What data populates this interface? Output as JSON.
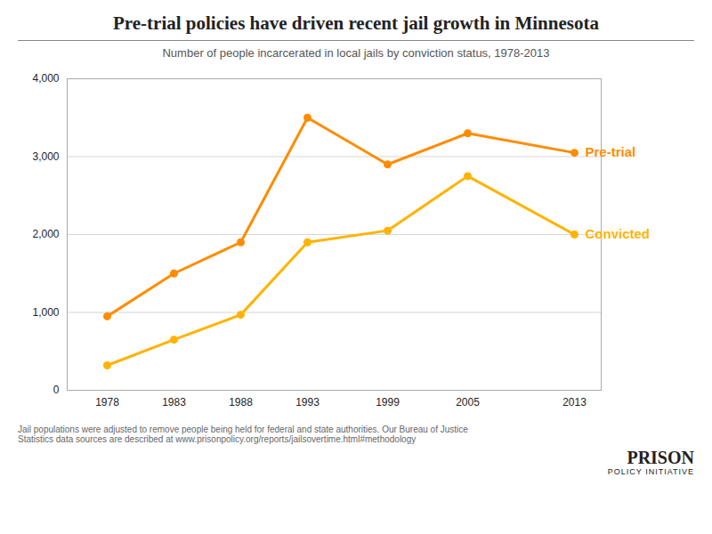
{
  "chart_data": {
    "type": "line",
    "title": "Pre-trial policies have driven recent jail growth in Minnesota",
    "subtitle": "Number of people incarcerated in local jails by conviction status, 1978-2013",
    "x": [
      1978,
      1983,
      1988,
      1993,
      1999,
      2005,
      2013
    ],
    "series": [
      {
        "name": "Pre-trial",
        "color": "#FF8C00",
        "values": [
          950,
          1500,
          1900,
          3500,
          2900,
          3300,
          3050
        ]
      },
      {
        "name": "Convicted",
        "color": "#FFB300",
        "values": [
          320,
          650,
          970,
          1900,
          2050,
          2750,
          2000
        ]
      }
    ],
    "xlim": [
      1975,
      2015
    ],
    "xticks": [
      1978,
      1983,
      1988,
      1993,
      1999,
      2005,
      2013
    ],
    "ylim": [
      0,
      4000
    ],
    "yticks": [
      0,
      {
        "value": 1000,
        "label": "1,000"
      },
      {
        "value": 2000,
        "label": "2,000"
      },
      {
        "value": 3000,
        "label": "3,000"
      },
      {
        "value": 4000,
        "label": "4,000"
      }
    ],
    "grid": true,
    "marker": "circle",
    "annotations": [
      "Jail populations were adjusted to remove people being held for federal and state authorities. Our Bureau of Justice\nStatistics data sources are described at www.prisonpolicy.org/reports/jailsovertime.html#methodology",
      "PRISON",
      "POLICY INITIATIVE"
    ]
  }
}
